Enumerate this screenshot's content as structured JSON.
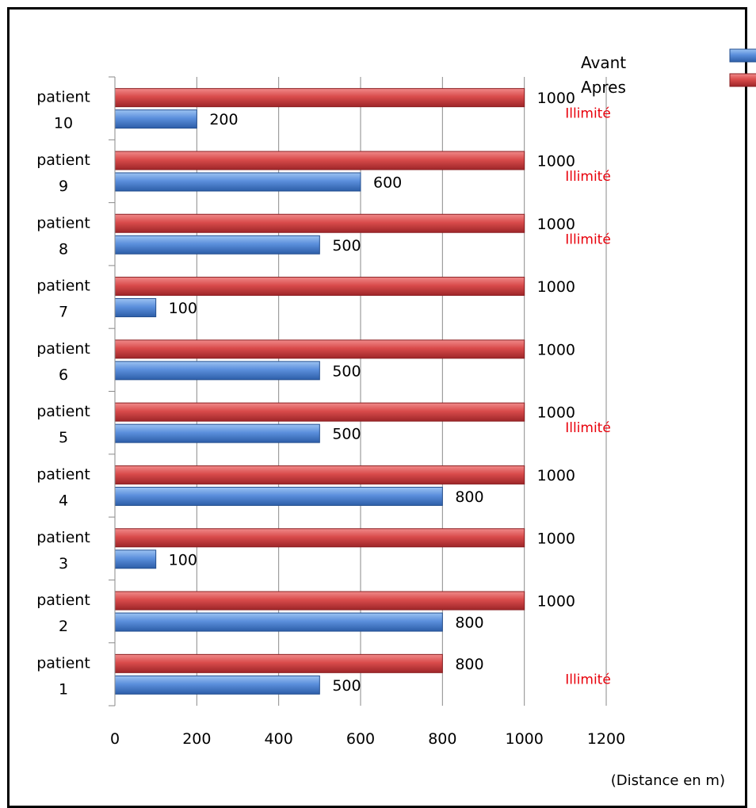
{
  "chart_data": {
    "type": "bar",
    "orientation": "horizontal",
    "categories": [
      "patient 1",
      "patient 2",
      "patient 3",
      "patient 4",
      "patient 5",
      "patient 6",
      "patient 7",
      "patient 8",
      "patient 9",
      "patient 10"
    ],
    "series": [
      {
        "name": "Avant",
        "color": "#4a7fd0",
        "values": [
          500,
          800,
          100,
          800,
          500,
          500,
          100,
          500,
          600,
          200
        ]
      },
      {
        "name": "Apres",
        "color": "#c0393b",
        "values": [
          800,
          1000,
          1000,
          1000,
          1000,
          1000,
          1000,
          1000,
          1000,
          1000
        ]
      }
    ],
    "xlim": [
      0,
      1200
    ],
    "xticks": [
      "0",
      "200",
      "400",
      "600",
      "800",
      "1000",
      "1200"
    ],
    "unit_label": "(Distance en m)",
    "annotation_text": "Illimité",
    "annotated_categories": [
      "patient 1",
      "patient 5",
      "patient 8",
      "patient 9",
      "patient 10"
    ],
    "grid": true,
    "legend_position": "top-right"
  }
}
